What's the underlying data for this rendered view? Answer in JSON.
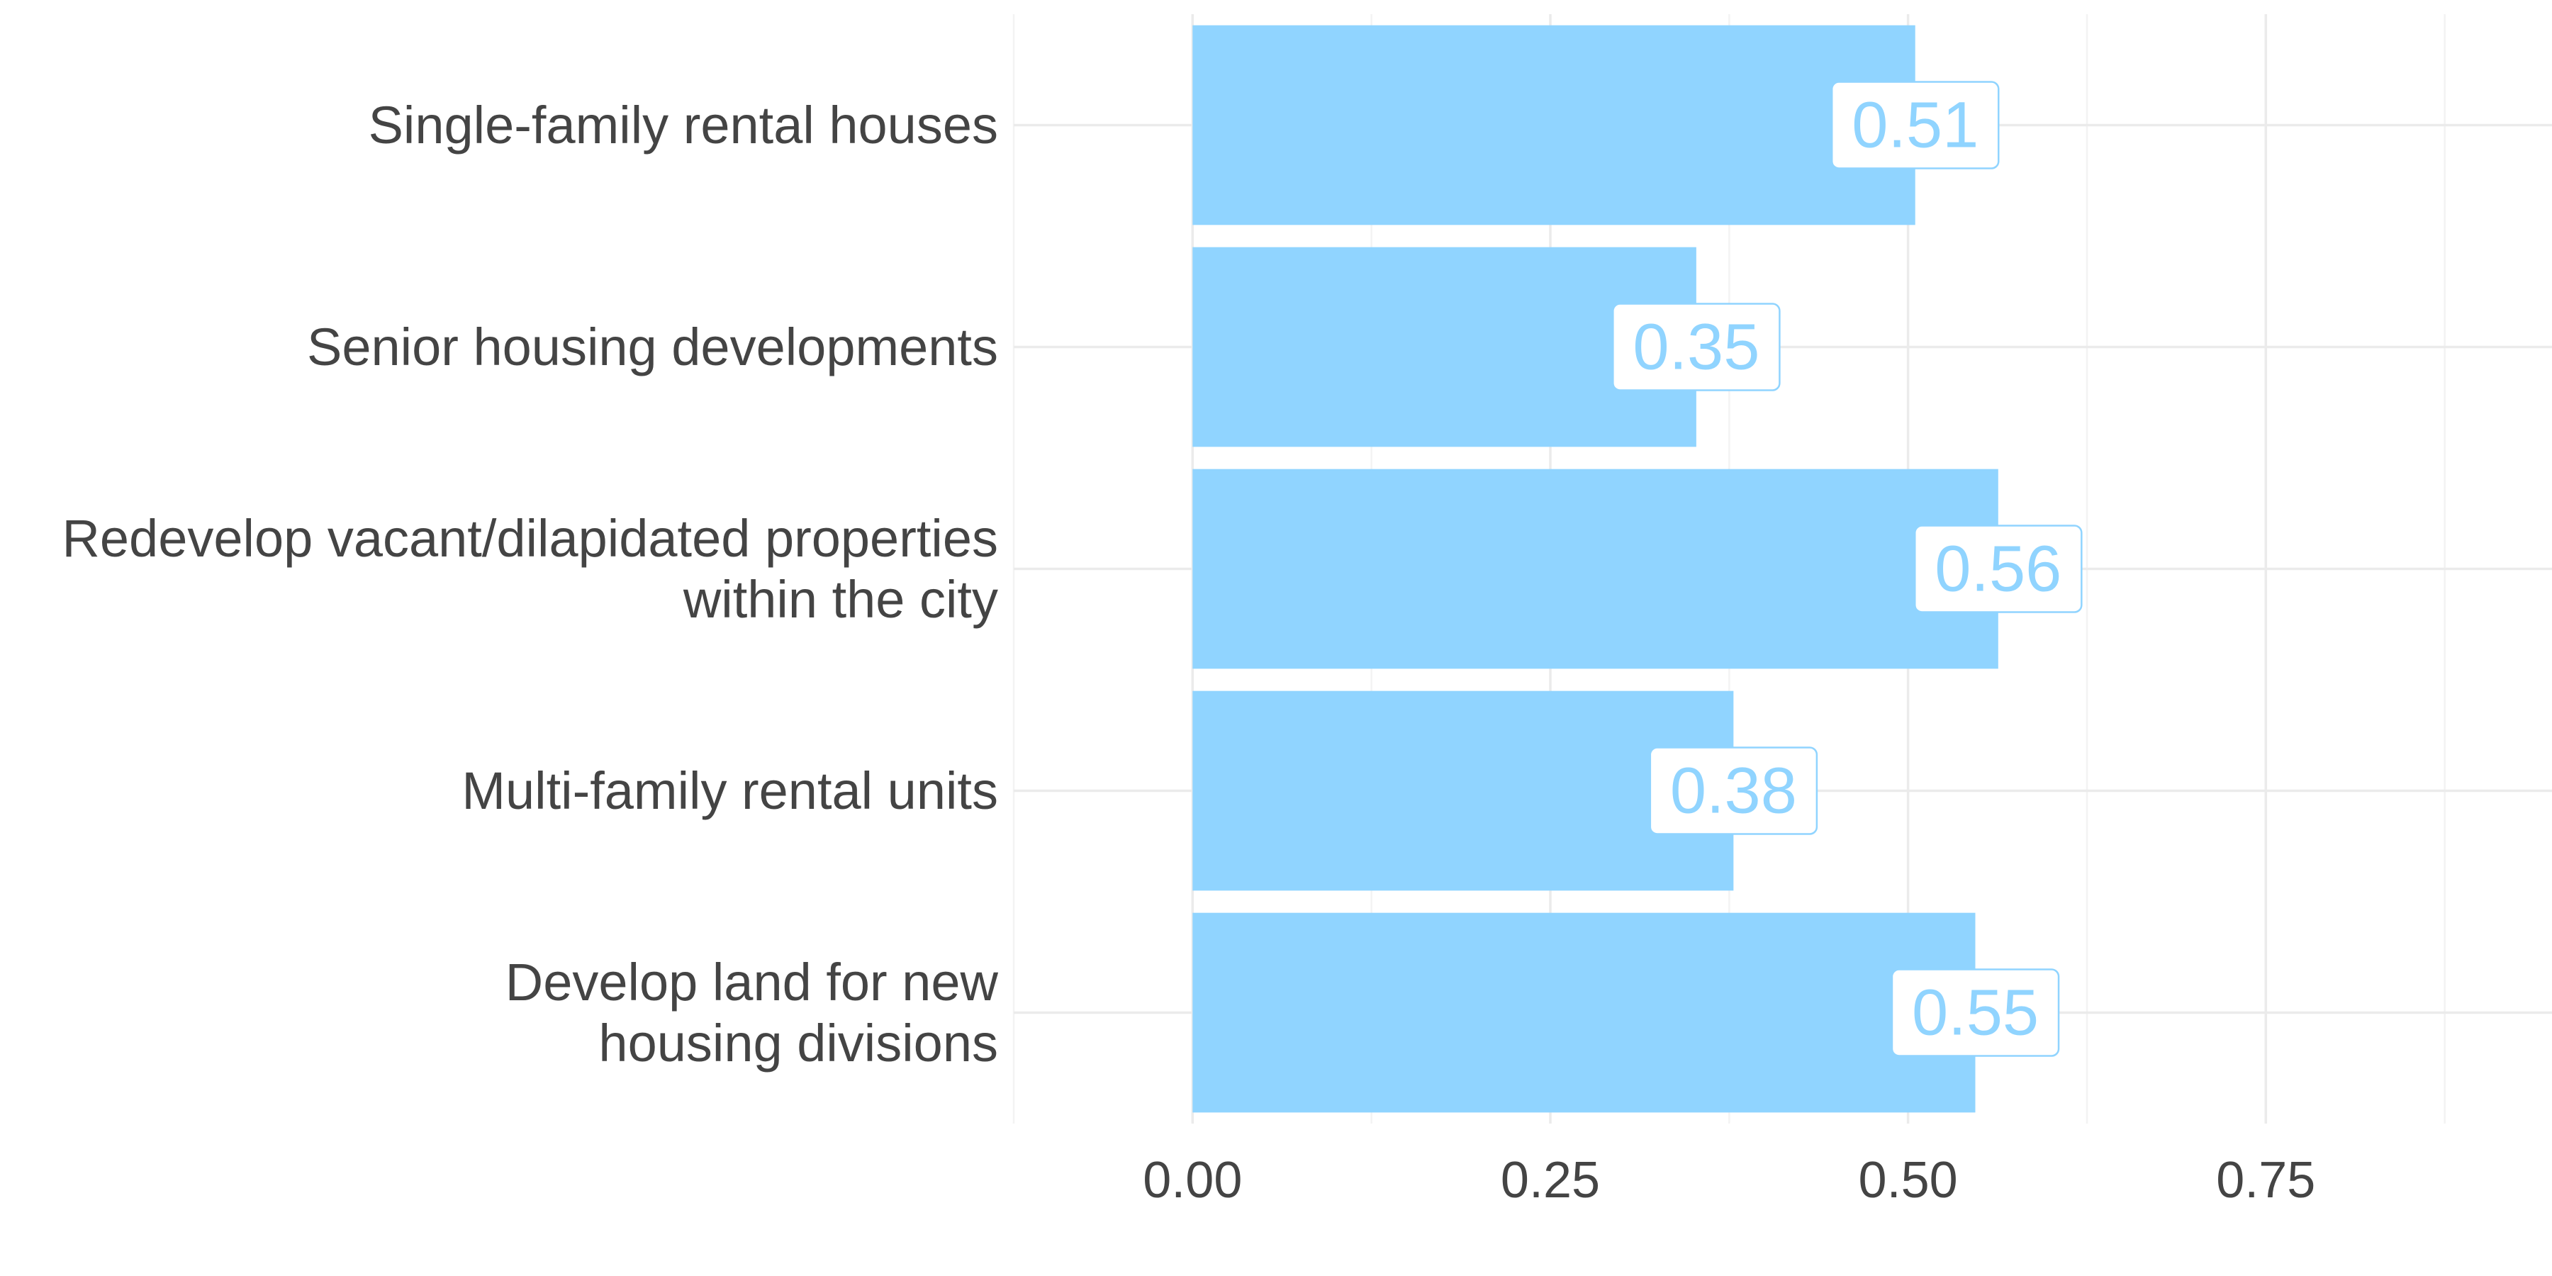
{
  "chart_data": {
    "type": "bar",
    "orientation": "horizontal",
    "categories": [
      "Single-family rental houses",
      "Senior housing developments",
      "Redevelop vacant/dilapidated properties within the city",
      "Multi-family rental units",
      "Develop land for new housing divisions"
    ],
    "category_lines": [
      [
        "Single-family rental houses"
      ],
      [
        "Senior housing developments"
      ],
      [
        "Redevelop vacant/dilapidated properties",
        "within the city"
      ],
      [
        "Multi-family rental units"
      ],
      [
        "Develop land for new",
        "housing divisions"
      ]
    ],
    "values": [
      0.505,
      0.352,
      0.563,
      0.378,
      0.547
    ],
    "value_labels": [
      "0.51",
      "0.35",
      "0.56",
      "0.38",
      "0.55"
    ],
    "xlim": [
      -0.125,
      0.95
    ],
    "x_ticks": [
      0.0,
      0.25,
      0.5,
      0.75
    ],
    "x_tick_labels": [
      "0.00",
      "0.25",
      "0.50",
      "0.75"
    ],
    "grid": true,
    "legend": "none",
    "bar_color": "#90d4ff",
    "title": "",
    "xlabel": "",
    "ylabel": ""
  }
}
